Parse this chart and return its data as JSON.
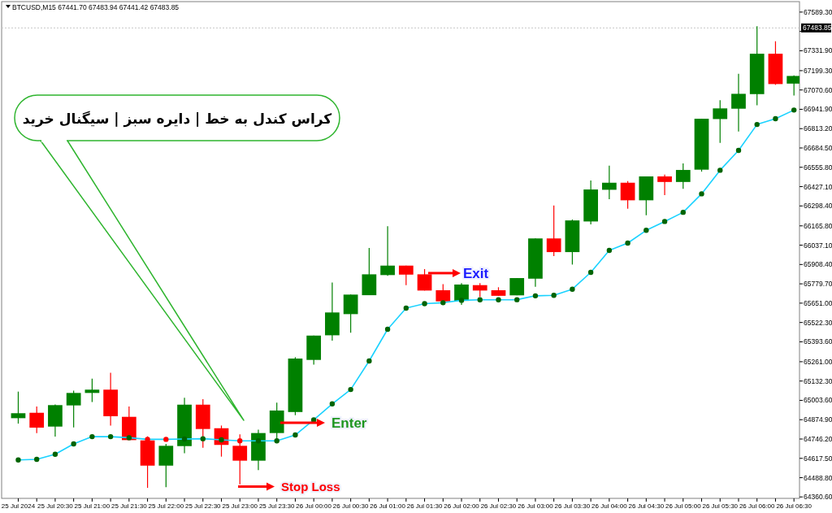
{
  "chart_data": {
    "type": "candlestick",
    "title": "BTCUSD,M15  67441.70 67483.94 67441.42 67483.85",
    "categories": [
      "25 Jul 2024",
      null,
      "25 Jul 20:30",
      null,
      "25 Jul 21:00",
      null,
      "25 Jul 21:30",
      null,
      "25 Jul 22:00",
      null,
      "25 Jul 22:30",
      null,
      "25 Jul 23:00",
      null,
      "25 Jul 23:30",
      null,
      "26 Jul 00:00",
      null,
      "26 Jul 00:30",
      null,
      "26 Jul 01:00",
      null,
      "26 Jul 01:30",
      null,
      "26 Jul 02:00",
      null,
      "26 Jul 02:30",
      null,
      "26 Jul 03:00",
      null,
      "26 Jul 03:30",
      null,
      "26 Jul 04:00",
      null,
      "26 Jul 04:30",
      null,
      "26 Jul 05:00",
      null,
      "26 Jul 05:30",
      null,
      "26 Jul 06:00",
      null,
      "26 Jul 06:30"
    ],
    "ohlc": [
      [
        64885,
        65062,
        64849,
        64918
      ],
      [
        64921,
        64963,
        64786,
        64822
      ],
      [
        64829,
        64977,
        64762,
        64972
      ],
      [
        64970,
        65069,
        64823,
        65053
      ],
      [
        65053,
        65148,
        64993,
        65075
      ],
      [
        65075,
        65188,
        64836,
        64898
      ],
      [
        64894,
        64963,
        64739,
        64739
      ],
      [
        64737,
        64764,
        64421,
        64569
      ],
      [
        64569,
        64714,
        64425,
        64701
      ],
      [
        64699,
        65021,
        64652,
        64975
      ],
      [
        64975,
        65011,
        64688,
        64813
      ],
      [
        64818,
        64836,
        64629,
        64707
      ],
      [
        64701,
        64777,
        64445,
        64602
      ],
      [
        64602,
        64809,
        64539,
        64786
      ],
      [
        64786,
        64988,
        64737,
        64936
      ],
      [
        64926,
        65291,
        64905,
        65282
      ],
      [
        65273,
        65435,
        65242,
        65435
      ],
      [
        65437,
        65789,
        65401,
        65589
      ],
      [
        65578,
        65708,
        65454,
        65708
      ],
      [
        65704,
        66018,
        65704,
        65843
      ],
      [
        65838,
        66163,
        65833,
        65901
      ],
      [
        65901,
        65901,
        65771,
        65841
      ],
      [
        65843,
        65878,
        65735,
        65735
      ],
      [
        65737,
        65778,
        65663,
        65663
      ],
      [
        65666,
        65784,
        65639,
        65775
      ],
      [
        65771,
        65784,
        65693,
        65735
      ],
      [
        65737,
        65757,
        65700,
        65700
      ],
      [
        65703,
        65818,
        65703,
        65818
      ],
      [
        65814,
        66082,
        65760,
        66082
      ],
      [
        66082,
        66301,
        65964,
        65991
      ],
      [
        65991,
        66208,
        65908,
        66202
      ],
      [
        66195,
        66468,
        66175,
        66408
      ],
      [
        66406,
        66567,
        66343,
        66453
      ],
      [
        66453,
        66464,
        66280,
        66336
      ],
      [
        66336,
        66495,
        66236,
        66495
      ],
      [
        66495,
        66507,
        66370,
        66458
      ],
      [
        66458,
        66581,
        66413,
        66538
      ],
      [
        66540,
        66879,
        66527,
        66879
      ],
      [
        66877,
        67002,
        66718,
        66948
      ],
      [
        66946,
        67178,
        66794,
        67045
      ],
      [
        67043,
        67495,
        66969,
        67312
      ],
      [
        67312,
        67395,
        67105,
        67110
      ],
      [
        67113,
        67168,
        67034,
        67164
      ]
    ],
    "colors": [
      "#008000",
      "#ff0000",
      "#008000",
      "#008000",
      "#008000",
      "#ff0000",
      "#ff0000",
      "#ff0000",
      "#008000",
      "#008000",
      "#ff0000",
      "#ff0000",
      "#ff0000",
      "#008000",
      "#008000",
      "#008000",
      "#008000",
      "#008000",
      "#008000",
      "#008000",
      "#008000",
      "#ff0000",
      "#ff0000",
      "#ff0000",
      "#008000",
      "#ff0000",
      "#ff0000",
      "#008000",
      "#008000",
      "#ff0000",
      "#008000",
      "#008000",
      "#008000",
      "#ff0000",
      "#008000",
      "#ff0000",
      "#008000",
      "#008000",
      "#008000",
      "#008000",
      "#008000",
      "#ff0000",
      "#008000"
    ],
    "series": [
      {
        "type": "line",
        "color": "#1ad2ff",
        "values": [
          64607,
          64611,
          64645,
          64714,
          64762,
          64762,
          64755,
          64744,
          64744,
          64746,
          64748,
          64741,
          64734,
          64734,
          64734,
          64773,
          64874,
          64980,
          65076,
          65266,
          65477,
          65618,
          65648,
          65654,
          65670,
          65673,
          65673,
          65674,
          65700,
          65703,
          65744,
          65856,
          66002,
          66051,
          66136,
          66195,
          66256,
          66379,
          66536,
          66668,
          66841,
          66879,
          66937
        ]
      },
      {
        "type": "scatter",
        "marker": "circle",
        "values": [
          64607,
          64611,
          64645,
          64714,
          64762,
          64762,
          64755,
          64744,
          64744,
          64746,
          64748,
          64741,
          64734,
          64734,
          64734,
          64773,
          64874,
          64980,
          65076,
          65266,
          65477,
          65618,
          65648,
          65654,
          65670,
          65673,
          65673,
          65674,
          65700,
          65703,
          65744,
          65856,
          66002,
          66051,
          66136,
          66195,
          66256,
          66379,
          66536,
          66668,
          66841,
          66879,
          66937
        ],
        "colors": [
          "#006400",
          "#006400",
          "#006400",
          "#006400",
          "#006400",
          "#006400",
          "#006400",
          "#ff0000",
          "#ff0000",
          "#006400",
          "#006400",
          "#006400",
          "#ff0000",
          "#006400",
          "#006400",
          "#006400",
          "#006400",
          "#006400",
          "#006400",
          "#006400",
          "#006400",
          "#006400",
          "#006400",
          "#006400",
          "#006400",
          "#006400",
          "#006400",
          "#006400",
          "#006400",
          "#006400",
          "#006400",
          "#006400",
          "#006400",
          "#006400",
          "#006400",
          "#006400",
          "#006400",
          "#006400",
          "#006400",
          "#006400",
          "#006400",
          "#006400",
          "#006400"
        ]
      }
    ],
    "ylim": [
      64351,
      67659
    ],
    "yticks": [
      {
        "value": 67589.3,
        "label": "67589.30"
      },
      {
        "value": 67460.6,
        "label": null
      },
      {
        "value": 67331.9,
        "label": "67331.90"
      },
      {
        "value": 67199.3,
        "label": "67199.30"
      },
      {
        "value": 67070.6,
        "label": "67070.60"
      },
      {
        "value": 66941.9,
        "label": "66941.90"
      },
      {
        "value": 66813.2,
        "label": "66813.20"
      },
      {
        "value": 66684.5,
        "label": "66684.50"
      },
      {
        "value": 66555.8,
        "label": "66555.80"
      },
      {
        "value": 66427.1,
        "label": "66427.10"
      },
      {
        "value": 66298.4,
        "label": "66298.40"
      },
      {
        "value": 66165.8,
        "label": "66165.80"
      },
      {
        "value": 66037.1,
        "label": "66037.10"
      },
      {
        "value": 65908.4,
        "label": "65908.40"
      },
      {
        "value": 65779.7,
        "label": "65779.70"
      },
      {
        "value": 65651,
        "label": "65651.00"
      },
      {
        "value": 65522.3,
        "label": "65522.30"
      },
      {
        "value": 65393.6,
        "label": "65393.60"
      },
      {
        "value": 65261,
        "label": "65261.00"
      },
      {
        "value": 65132.3,
        "label": "65132.30"
      },
      {
        "value": 65003.6,
        "label": "65003.60"
      },
      {
        "value": 64874.9,
        "label": "64874.90"
      },
      {
        "value": 64746.2,
        "label": "64746.20"
      },
      {
        "value": 64617.5,
        "label": "64617.50"
      },
      {
        "value": 64488.8,
        "label": "64488.80"
      },
      {
        "value": 64360.6,
        "label": "64360.60"
      }
    ],
    "ref_lines": [
      {
        "axis": "y",
        "value": 67483.85,
        "label": "67483.85",
        "color": "#c8c8c8",
        "line_style": "dotted"
      }
    ],
    "annotations": [
      "کراس کندل به خط | دایره سبز | سیگنال خرید",
      "Enter",
      "Exit",
      "Stop Loss"
    ]
  }
}
